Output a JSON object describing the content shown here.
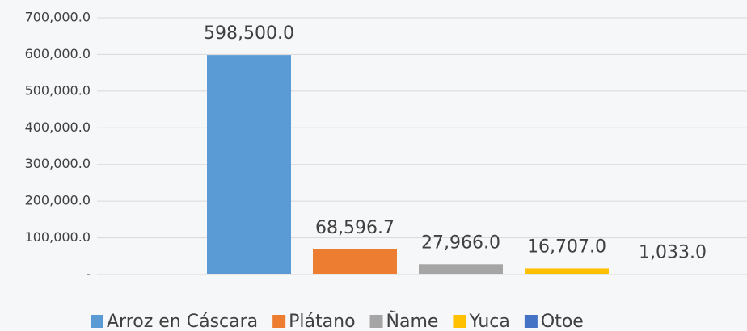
{
  "chart_data": {
    "type": "bar",
    "categories": [
      "Arroz en Cáscara",
      "Plátano",
      "Ñame",
      "Yuca",
      "Otoe"
    ],
    "values": [
      598500.0,
      68596.7,
      27966.0,
      16707.0,
      1033.0
    ],
    "value_labels": [
      "598,500.0",
      "68,596.7",
      "27,966.0",
      "16,707.0",
      "1,033.0"
    ],
    "colors": [
      "#5b9bd5",
      "#ed7d31",
      "#a5a5a5",
      "#ffc000",
      "#4472c4"
    ],
    "ylim": [
      0,
      700000
    ],
    "yticks": [
      {
        "value": 0,
        "label": "-"
      },
      {
        "value": 100000,
        "label": "100,000.0"
      },
      {
        "value": 200000,
        "label": "200,000.0"
      },
      {
        "value": 300000,
        "label": "300,000.0"
      },
      {
        "value": 400000,
        "label": "400,000.0"
      },
      {
        "value": 500000,
        "label": "500,000.0"
      },
      {
        "value": 600000,
        "label": "600,000.0"
      },
      {
        "value": 700000,
        "label": "700,000.0"
      }
    ],
    "grid": true,
    "legend": "bottom"
  }
}
